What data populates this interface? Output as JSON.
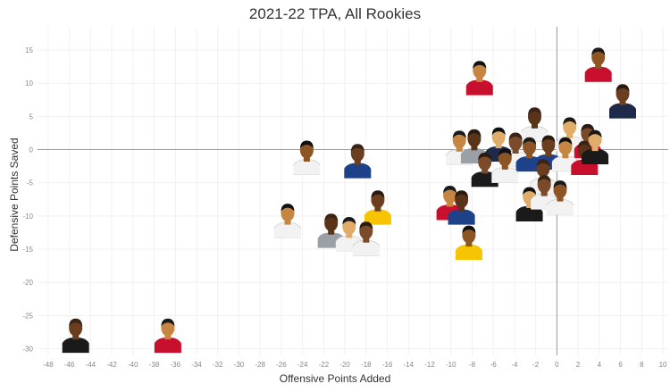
{
  "chart_data": {
    "type": "scatter",
    "title": "2021-22 TPA, All Rookies",
    "xlabel": "Offensive Points Added",
    "ylabel": "Defensive Points Saved",
    "xlim": [
      -49,
      10.5
    ],
    "ylim": [
      -31,
      18.5
    ],
    "xticks": [
      -48,
      -46,
      -44,
      -42,
      -40,
      -38,
      -36,
      -34,
      -32,
      -30,
      -28,
      -26,
      -24,
      -22,
      -20,
      -18,
      -16,
      -14,
      -12,
      -10,
      -8,
      -6,
      -4,
      -2,
      0,
      2,
      4,
      6,
      8,
      10
    ],
    "yticks": [
      15,
      10,
      5,
      0,
      -5,
      -10,
      -15,
      -20,
      -25,
      -30
    ],
    "grid": true,
    "zero_lines": true,
    "marker": "player-headshot",
    "points": [
      {
        "x": 3.9,
        "y": 13.0,
        "jersey": "red"
      },
      {
        "x": 6.2,
        "y": 7.5,
        "jersey": "navy"
      },
      {
        "x": -7.3,
        "y": 11.0,
        "jersey": "red"
      },
      {
        "x": -2.1,
        "y": 4.0,
        "jersey": "white"
      },
      {
        "x": 1.2,
        "y": 2.5,
        "jersey": "white"
      },
      {
        "x": 2.9,
        "y": 1.5,
        "jersey": "red"
      },
      {
        "x": -23.6,
        "y": -1.0,
        "jersey": "white"
      },
      {
        "x": -18.8,
        "y": -1.5,
        "jersey": "blue"
      },
      {
        "x": -9.2,
        "y": 0.5,
        "jersey": "white"
      },
      {
        "x": -7.8,
        "y": 0.7,
        "jersey": "grey"
      },
      {
        "x": -5.5,
        "y": 1.0,
        "jersey": "navy"
      },
      {
        "x": -3.9,
        "y": 0.2,
        "jersey": "white"
      },
      {
        "x": -2.6,
        "y": -0.5,
        "jersey": "blue"
      },
      {
        "x": -0.8,
        "y": -0.2,
        "jersey": "blue"
      },
      {
        "x": 0.8,
        "y": -0.5,
        "jersey": "white"
      },
      {
        "x": 2.6,
        "y": -1.0,
        "jersey": "red"
      },
      {
        "x": 3.6,
        "y": 0.6,
        "jersey": "black"
      },
      {
        "x": -6.8,
        "y": -2.8,
        "jersey": "black"
      },
      {
        "x": -4.9,
        "y": -2.2,
        "jersey": "white"
      },
      {
        "x": -1.3,
        "y": -3.8,
        "jersey": "white"
      },
      {
        "x": -10.1,
        "y": -7.8,
        "jersey": "red"
      },
      {
        "x": -9.0,
        "y": -8.5,
        "jersey": "blue"
      },
      {
        "x": -2.6,
        "y": -8.0,
        "jersey": "black"
      },
      {
        "x": -1.2,
        "y": -6.2,
        "jersey": "white"
      },
      {
        "x": 0.3,
        "y": -7.0,
        "jersey": "white"
      },
      {
        "x": -16.9,
        "y": -8.5,
        "jersey": "yellow"
      },
      {
        "x": -25.4,
        "y": -10.5,
        "jersey": "white"
      },
      {
        "x": -21.3,
        "y": -12.0,
        "jersey": "grey"
      },
      {
        "x": -19.6,
        "y": -12.5,
        "jersey": "white"
      },
      {
        "x": -18.0,
        "y": -13.2,
        "jersey": "white"
      },
      {
        "x": -8.3,
        "y": -13.8,
        "jersey": "yellow"
      },
      {
        "x": -45.4,
        "y": -27.8,
        "jersey": "black"
      },
      {
        "x": -36.7,
        "y": -27.8,
        "jersey": "red"
      }
    ]
  }
}
